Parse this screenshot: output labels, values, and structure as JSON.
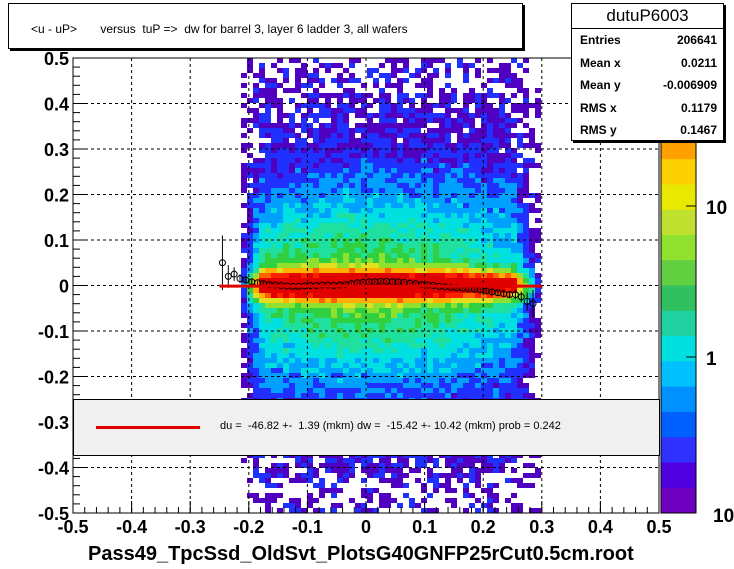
{
  "title": "<u - uP>       versus  tuP =>  dw for barrel 3, layer 6 ladder 3, all wafers",
  "stats": {
    "name": "dutuP6003",
    "rows": [
      {
        "key": "Entries",
        "value": "206641"
      },
      {
        "key": "Mean x",
        "value": "0.0211"
      },
      {
        "key": "Mean y",
        "value": "-0.006909"
      },
      {
        "key": "RMS x",
        "value": "0.1179"
      },
      {
        "key": "RMS y",
        "value": "0.1467"
      }
    ]
  },
  "fit_legend": "du =  -46.82 +-  1.39 (mkm) dw =  -15.42 +- 10.42 (mkm) prob = 0.242",
  "x_title": "Pass49_TpcSsd_OldSvt_PlotsG40GNFP25rCut0.5cm.root",
  "colors": {
    "fit_line": "#e00000",
    "profile_marker": "#000000"
  },
  "chart_data": {
    "type": "heatmap",
    "xlim": [
      -0.5,
      0.5
    ],
    "ylim": [
      -0.5,
      0.5
    ],
    "x_ticks": [
      "-0.5",
      "-0.4",
      "-0.3",
      "-0.2",
      "-0.1",
      "0",
      "0.1",
      "0.2",
      "0.3",
      "0.4",
      "0.5"
    ],
    "y_ticks": [
      "-0.5",
      "-0.4",
      "-0.3",
      "-0.2",
      "-0.1",
      "0",
      "0.1",
      "0.2",
      "0.3",
      "0.4",
      "0.5"
    ],
    "z_scale": "log",
    "z_ticks": [
      "1",
      "10"
    ],
    "z_edge_label": "10",
    "grid": true,
    "fit_line": {
      "x": [
        -0.25,
        0.3
      ],
      "y": [
        -0.0015,
        -0.0015
      ]
    },
    "profile": {
      "x": [
        -0.245,
        -0.235,
        -0.225,
        -0.215,
        -0.205,
        -0.195,
        -0.185,
        -0.175,
        -0.165,
        -0.155,
        -0.145,
        -0.135,
        -0.125,
        -0.115,
        -0.105,
        -0.095,
        -0.085,
        -0.075,
        -0.065,
        -0.055,
        -0.045,
        -0.035,
        -0.025,
        -0.015,
        -0.005,
        0.005,
        0.015,
        0.025,
        0.035,
        0.045,
        0.055,
        0.065,
        0.075,
        0.085,
        0.095,
        0.105,
        0.115,
        0.125,
        0.135,
        0.145,
        0.155,
        0.165,
        0.175,
        0.185,
        0.195,
        0.205,
        0.215,
        0.225,
        0.235,
        0.245,
        0.255,
        0.265,
        0.275,
        0.285
      ],
      "y": [
        0.05,
        0.02,
        0.025,
        0.015,
        0.012,
        0.008,
        0.006,
        0.004,
        0.002,
        0.001,
        0.0,
        -0.001,
        -0.002,
        -0.002,
        -0.001,
        0.0,
        0.0,
        0.001,
        0.001,
        0.0,
        0.001,
        0.002,
        0.004,
        0.006,
        0.007,
        0.008,
        0.008,
        0.009,
        0.009,
        0.008,
        0.008,
        0.007,
        0.005,
        0.004,
        0.002,
        0.001,
        0.0,
        -0.002,
        -0.003,
        -0.004,
        -0.005,
        -0.006,
        -0.007,
        -0.008,
        -0.01,
        -0.012,
        -0.014,
        -0.016,
        -0.018,
        -0.02,
        -0.02,
        -0.025,
        -0.035,
        -0.04
      ],
      "err": [
        0.06,
        0.025,
        0.015,
        0.01,
        0.008,
        0.006,
        0.005,
        0.004,
        0.004,
        0.003,
        0.003,
        0.003,
        0.003,
        0.003,
        0.003,
        0.003,
        0.003,
        0.003,
        0.003,
        0.003,
        0.003,
        0.003,
        0.003,
        0.003,
        0.003,
        0.003,
        0.003,
        0.003,
        0.003,
        0.003,
        0.003,
        0.003,
        0.003,
        0.003,
        0.003,
        0.003,
        0.003,
        0.003,
        0.003,
        0.003,
        0.003,
        0.003,
        0.004,
        0.004,
        0.004,
        0.005,
        0.005,
        0.006,
        0.006,
        0.008,
        0.01,
        0.012,
        0.02,
        0.03
      ]
    }
  }
}
